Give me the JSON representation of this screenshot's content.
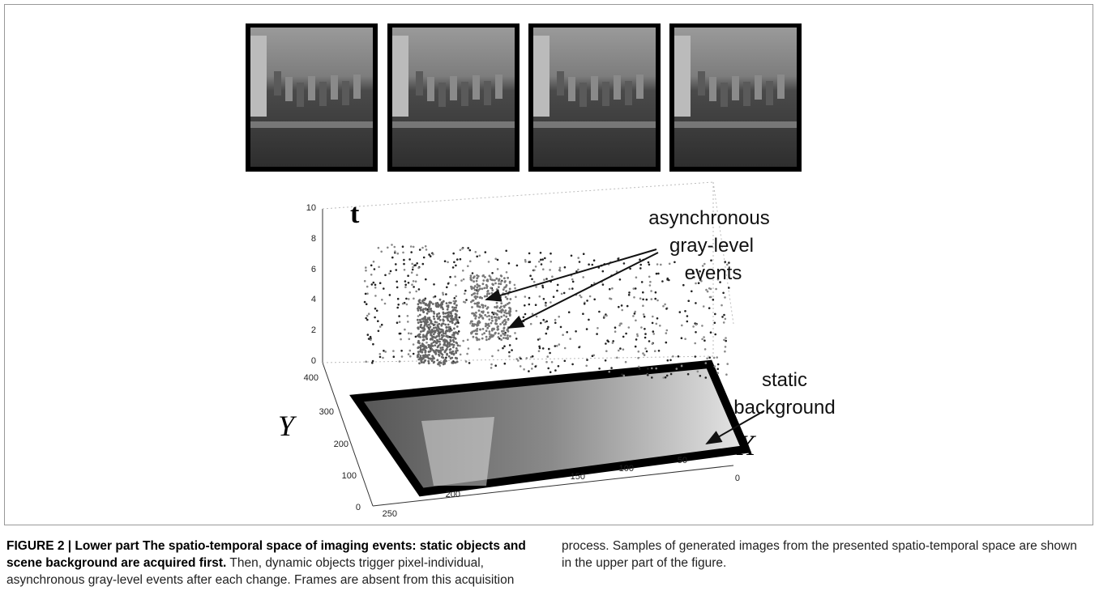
{
  "figure": {
    "plot": {
      "t_label": "t",
      "y_label": "Y",
      "x_label": "X",
      "t_ticks": [
        "0",
        "2",
        "4",
        "6",
        "8",
        "10"
      ],
      "y_ticks": [
        "0",
        "100",
        "200",
        "300",
        "400"
      ],
      "x_ticks": [
        "0",
        "50",
        "100",
        "150",
        "200",
        "250"
      ],
      "events_annotation": [
        "asynchronous",
        "gray-level",
        "events"
      ],
      "background_annotation": [
        "static",
        "background"
      ]
    },
    "caption": {
      "bold": "FIGURE 2 | Lower part The spatio-temporal space of imaging events: static objects and scene background are acquired first.",
      "text": "Then, dynamic objects trigger pixel-individual, asynchronous gray-level events after each change. Frames are absent from this acquisition process. Samples of generated images from the presented spatio-temporal space are shown in the upper part of the figure."
    }
  }
}
